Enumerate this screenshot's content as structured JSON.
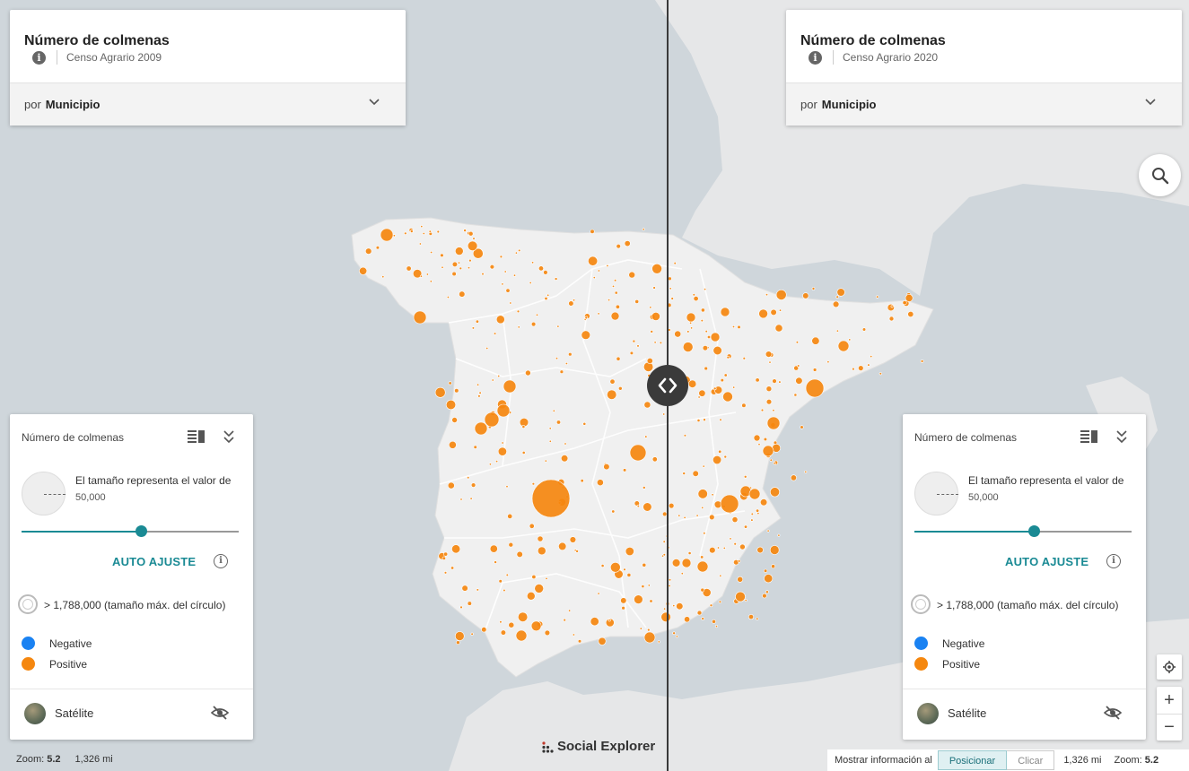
{
  "left_panel": {
    "title": "Número de colmenas",
    "source": "Censo Agrario 2009",
    "geo_prefix": "por",
    "geo_level": "Municipio"
  },
  "right_panel": {
    "title": "Número de colmenas",
    "source": "Censo Agrario 2020",
    "geo_prefix": "por",
    "geo_level": "Municipio"
  },
  "legend": {
    "title": "Número de colmenas",
    "size_text": "El tamaño representa el valor de",
    "size_value": "50,000",
    "slider_fraction": 0.55,
    "auto_label": "AUTO AJUSTE",
    "max_text": "> 1,788,000 (tamaño máx. del círculo)",
    "items": [
      {
        "label": "Negative",
        "color": "#1a82f2"
      },
      {
        "label": "Positive",
        "color": "#f5870f"
      }
    ],
    "basemap_label": "Satélite"
  },
  "footer": {
    "zoom_label": "Zoom:",
    "zoom_value": "5.2",
    "scale": "1,326 mi",
    "show_info_label": "Mostrar información al",
    "toggle_position": "Posicionar",
    "toggle_click": "Clicar"
  },
  "brand": "Social Explorer",
  "colors": {
    "accent": "#1a8a94",
    "bubble": "#f5870f",
    "land": "#f0f0f0",
    "water": "#cfd6db"
  },
  "icons": {
    "info": "info-icon",
    "chevron": "chevron-down-icon",
    "search": "search-icon",
    "locate": "crosshair-icon",
    "swipe": "swipe-arrows-icon"
  }
}
